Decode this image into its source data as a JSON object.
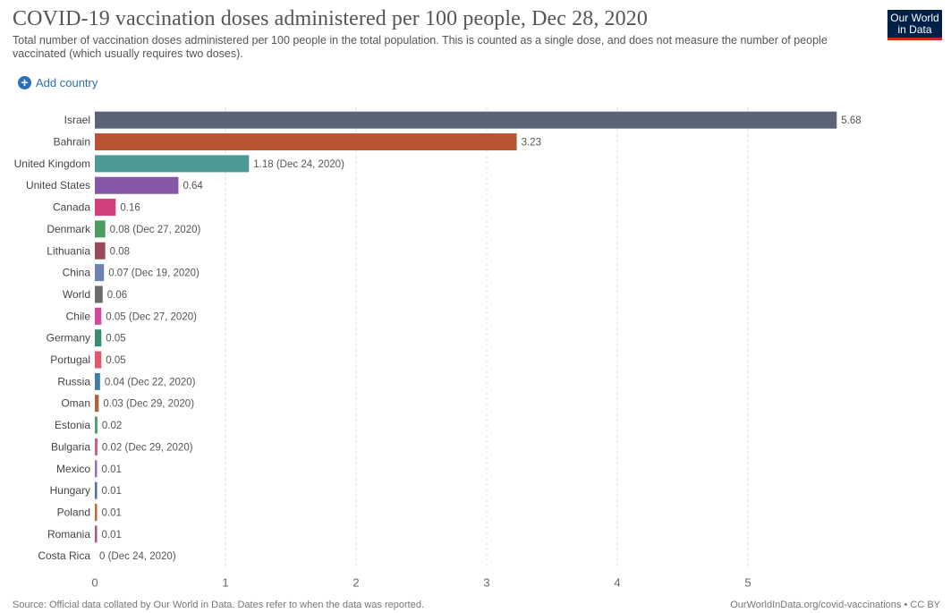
{
  "title": "COVID-19 vaccination doses administered per 100 people, Dec 28, 2020",
  "subtitle": "Total number of vaccination doses administered per 100 people in the total population. This is counted as a single dose, and does not measure the number of people vaccinated (which usually requires two doses).",
  "logo": {
    "line1": "Our World",
    "line2": "in Data",
    "bg": "#002147",
    "accent": "#ce261e"
  },
  "add_country": {
    "label": "Add country",
    "icon": "plus-circle-icon",
    "color": "#2c6eb8"
  },
  "footer": {
    "source": "Source: Official data collated by Our World in Data. Dates refer to when the data was reported.",
    "link": "OurWorldInData.org/covid-vaccinations • CC BY"
  },
  "chart_data": {
    "type": "bar",
    "orientation": "horizontal",
    "categories": [
      "Israel",
      "Bahrain",
      "United Kingdom",
      "United States",
      "Canada",
      "Denmark",
      "Lithuania",
      "China",
      "World",
      "Chile",
      "Germany",
      "Portugal",
      "Russia",
      "Oman",
      "Estonia",
      "Bulgaria",
      "Mexico",
      "Hungary",
      "Poland",
      "Romania",
      "Costa Rica"
    ],
    "values": [
      5.68,
      3.23,
      1.18,
      0.64,
      0.16,
      0.08,
      0.08,
      0.07,
      0.06,
      0.05,
      0.05,
      0.05,
      0.04,
      0.03,
      0.02,
      0.02,
      0.01,
      0.01,
      0.01,
      0.01,
      0
    ],
    "value_labels": [
      "5.68",
      "3.23",
      "1.18 (Dec 24, 2020)",
      "0.64",
      "0.16",
      "0.08 (Dec 27, 2020)",
      "0.08",
      "0.07 (Dec 19, 2020)",
      "0.06",
      "0.05 (Dec 27, 2020)",
      "0.05",
      "0.05",
      "0.04 (Dec 22, 2020)",
      "0.03 (Dec 29, 2020)",
      "0.02",
      "0.02 (Dec 29, 2020)",
      "0.01",
      "0.01",
      "0.01",
      "0.01",
      "0 (Dec 24, 2020)"
    ],
    "colors": [
      "#5b6477",
      "#b95433",
      "#4c9a93",
      "#8458a6",
      "#d13f7c",
      "#4f9a60",
      "#9b4a57",
      "#6d82b3",
      "#6b6b6b",
      "#cf4aa0",
      "#3d8a73",
      "#e05a6b",
      "#3e7ea3",
      "#a8663c",
      "#4aa36b",
      "#c9607d",
      "#9b6fb5",
      "#4d6fa3",
      "#b86c36",
      "#a35a8a",
      "#888888"
    ],
    "xlim": [
      0,
      5.68
    ],
    "xticks": [
      0,
      1,
      2,
      3,
      4,
      5
    ],
    "grid": true,
    "xlabel": "",
    "ylabel": ""
  }
}
